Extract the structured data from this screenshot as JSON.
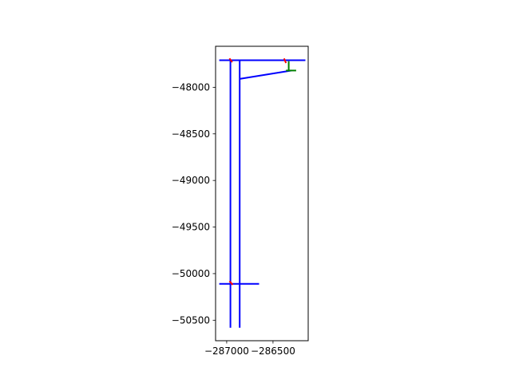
{
  "chart_data": {
    "type": "line",
    "title": "",
    "xlabel": "",
    "ylabel": "",
    "xlim": [
      -287120,
      -286120
    ],
    "ylim": [
      -50720,
      -47560
    ],
    "grid": false,
    "legend": "none",
    "x_ticks": [
      {
        "value": -287000,
        "label": "−287000"
      },
      {
        "value": -286500,
        "label": "−286500"
      }
    ],
    "y_ticks": [
      {
        "value": -48000,
        "label": "−48000"
      },
      {
        "value": -48500,
        "label": "−48500"
      },
      {
        "value": -49000,
        "label": "−49000"
      },
      {
        "value": -49500,
        "label": "−49500"
      },
      {
        "value": -50000,
        "label": "−50000"
      },
      {
        "value": -50500,
        "label": "−50500"
      }
    ],
    "colors": {
      "blue": "#0000ff",
      "red": "#ff0000",
      "green": "#008000"
    },
    "series": [
      {
        "color": "#0000ff",
        "points": [
          [
            -287080,
            -47710
          ],
          [
            -286150,
            -47710
          ]
        ]
      },
      {
        "color": "#0000ff",
        "points": [
          [
            -286960,
            -47710
          ],
          [
            -286960,
            -50580
          ]
        ]
      },
      {
        "color": "#0000ff",
        "points": [
          [
            -286860,
            -47710
          ],
          [
            -286860,
            -50580
          ]
        ]
      },
      {
        "color": "#0000ff",
        "points": [
          [
            -286860,
            -47910
          ],
          [
            -286300,
            -47820
          ]
        ]
      },
      {
        "color": "#0000ff",
        "points": [
          [
            -287080,
            -50110
          ],
          [
            -286650,
            -50110
          ]
        ]
      },
      {
        "color": "#008000",
        "points": [
          [
            -286330,
            -47720
          ],
          [
            -286330,
            -47820
          ]
        ]
      },
      {
        "color": "#008000",
        "points": [
          [
            -286360,
            -47820
          ],
          [
            -286250,
            -47820
          ]
        ]
      },
      {
        "color": "#ff0000",
        "points": [
          [
            -286380,
            -47690
          ],
          [
            -286360,
            -47740
          ]
        ]
      },
      {
        "color": "#ff0000",
        "points": [
          [
            -286970,
            -47690
          ],
          [
            -286940,
            -47730
          ]
        ]
      },
      {
        "color": "#ff0000",
        "points": [
          [
            -286970,
            -50080
          ],
          [
            -286935,
            -50120
          ]
        ]
      }
    ]
  }
}
